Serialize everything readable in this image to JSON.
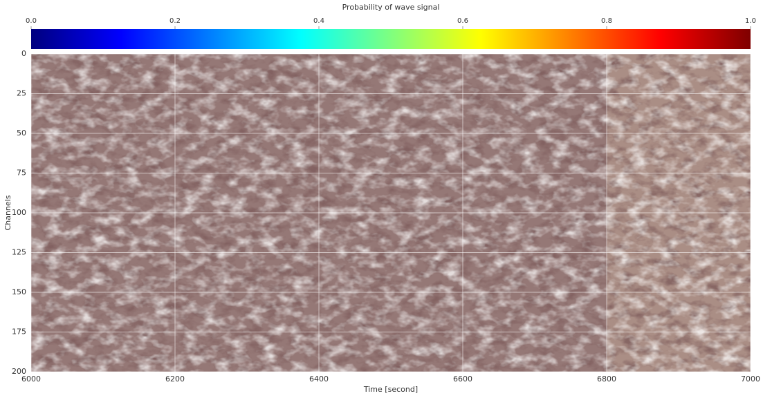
{
  "chart_data": {
    "type": "image",
    "colorbar": {
      "label": "Probability of wave signal",
      "colormap": "jet",
      "lim": [
        0,
        1
      ],
      "ticks": [
        {
          "value": 0,
          "label": "0.0"
        },
        {
          "value": 0.2,
          "label": "0.2"
        },
        {
          "value": 0.4,
          "label": "0.4"
        },
        {
          "value": 0.6,
          "label": "0.6"
        },
        {
          "value": 0.8,
          "label": "0.8"
        },
        {
          "value": 1,
          "label": "1.0"
        }
      ]
    },
    "xlabel": "Time [second]",
    "ylabel": "Channels",
    "xlim": [
      6000,
      7000
    ],
    "xticks": [
      6000,
      6200,
      6400,
      6600,
      6800,
      7000
    ],
    "ylim": [
      200,
      0
    ],
    "yticks": [
      0,
      25,
      50,
      75,
      100,
      125,
      150,
      175,
      200
    ],
    "grid": true
  }
}
